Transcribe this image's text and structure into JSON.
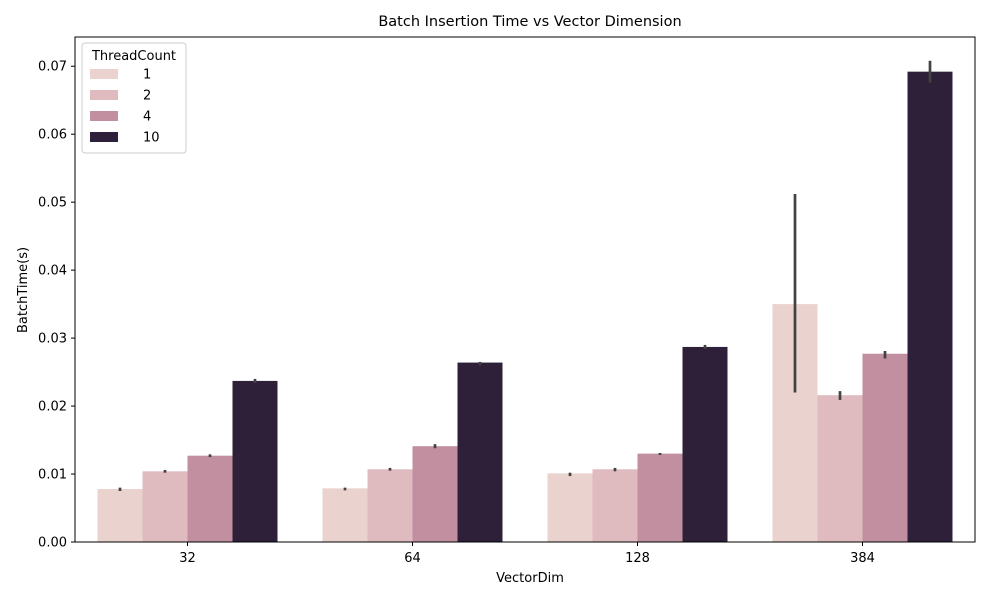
{
  "chart_data": {
    "type": "bar",
    "title": "Batch Insertion Time vs Vector Dimension",
    "xlabel": "VectorDim",
    "ylabel": "BatchTime(s)",
    "categories": [
      "32",
      "64",
      "128",
      "384"
    ],
    "ylim": [
      0,
      0.0743
    ],
    "yticks": [
      "0.00",
      "0.01",
      "0.02",
      "0.03",
      "0.04",
      "0.05",
      "0.06",
      "0.07"
    ],
    "legend": {
      "title": "ThreadCount",
      "placement": "top-left"
    },
    "grid": false,
    "series": [
      {
        "name": "1",
        "color": "#ead2cf",
        "values": [
          0.0078,
          0.0079,
          0.0101,
          0.035
        ],
        "error_low": [
          0.0075,
          0.0076,
          0.0097,
          0.022
        ],
        "error_high": [
          0.008,
          0.008,
          0.0102,
          0.0512
        ]
      },
      {
        "name": "2",
        "color": "#dfbbbf",
        "values": [
          0.0104,
          0.0107,
          0.0107,
          0.0216
        ],
        "error_low": [
          0.0102,
          0.0105,
          0.0104,
          0.0209
        ],
        "error_high": [
          0.0106,
          0.0109,
          0.0109,
          0.0222
        ]
      },
      {
        "name": "4",
        "color": "#c18f9f",
        "values": [
          0.0127,
          0.0141,
          0.013,
          0.0277
        ],
        "error_low": [
          0.0125,
          0.0138,
          0.0128,
          0.027
        ],
        "error_high": [
          0.0129,
          0.0144,
          0.0131,
          0.0281
        ]
      },
      {
        "name": "10",
        "color": "#2d2038",
        "values": [
          0.0237,
          0.0264,
          0.0287,
          0.0692
        ],
        "error_low": [
          0.0234,
          0.026,
          0.0284,
          0.0676
        ],
        "error_high": [
          0.024,
          0.0265,
          0.029,
          0.0708
        ]
      }
    ]
  }
}
